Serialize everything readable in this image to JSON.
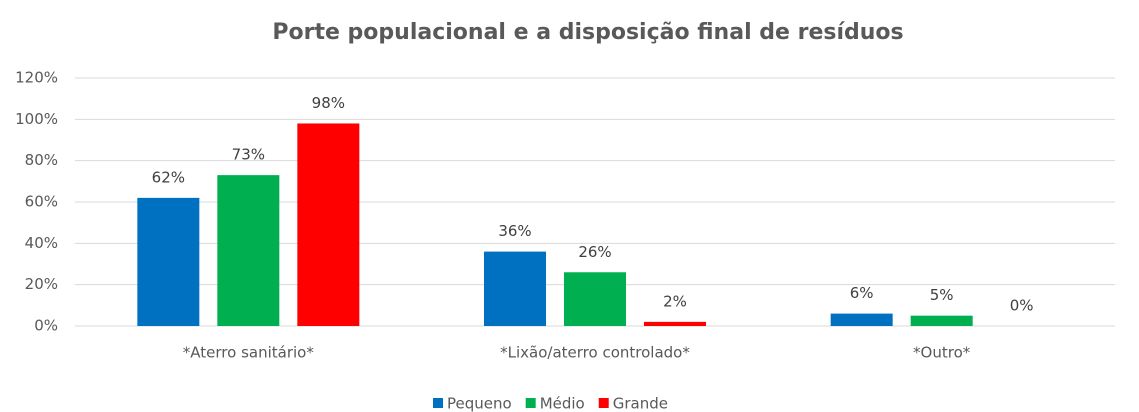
{
  "chart_data": {
    "type": "bar",
    "title": "Porte populacional  e a disposição final de resíduos",
    "categories": [
      "*Aterro sanitário*",
      "*Lixão/aterro controlado*",
      "*Outro*"
    ],
    "series": [
      {
        "name": "Pequeno",
        "color": "#0070c0",
        "values": [
          62,
          36,
          6
        ],
        "value_labels": [
          "62%",
          "36%",
          "6%"
        ]
      },
      {
        "name": "Médio",
        "color": "#00b050",
        "values": [
          73,
          26,
          5
        ],
        "value_labels": [
          "73%",
          "26%",
          "5%"
        ]
      },
      {
        "name": "Grande",
        "color": "#ff0000",
        "values": [
          98,
          2,
          0
        ],
        "value_labels": [
          "98%",
          "2%",
          "0%"
        ]
      }
    ],
    "ylim": [
      0,
      120
    ],
    "yticks": [
      {
        "value": 0,
        "label": "0%"
      },
      {
        "value": 20,
        "label": "20%"
      },
      {
        "value": 40,
        "label": "40%"
      },
      {
        "value": 60,
        "label": "60%"
      },
      {
        "value": 80,
        "label": "80%"
      },
      {
        "value": 100,
        "label": "100%"
      },
      {
        "value": 120,
        "label": "120%"
      }
    ],
    "grid": true,
    "legend": "bottom"
  }
}
